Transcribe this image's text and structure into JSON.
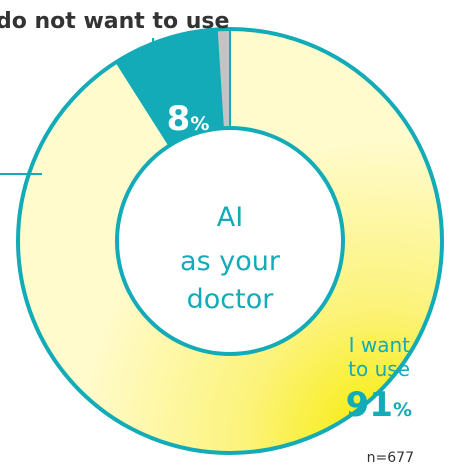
{
  "chart_data": {
    "type": "pie",
    "title": "",
    "center_label_lines": [
      "AI",
      "as your",
      "doctor"
    ],
    "sample_size": "n=677",
    "slices": [
      {
        "label": "I want to use",
        "label_lines": [
          "I want",
          "to use"
        ],
        "value": 91,
        "display_value": "91",
        "unit": "%",
        "color": "#fff9b0"
      },
      {
        "label": "do not want to use",
        "label_lines": [
          "do not want to use"
        ],
        "value": 8,
        "display_value": "8",
        "unit": "%",
        "color": "#12abb7"
      },
      {
        "label": "",
        "value": 1,
        "display_value": "",
        "unit": "",
        "color": "#c3c3c3"
      }
    ],
    "colors": {
      "accent": "#12abb7",
      "ring_edge": "#12abb7",
      "highlight_yellow": "#f7ec00",
      "text_dark": "#333333"
    }
  }
}
